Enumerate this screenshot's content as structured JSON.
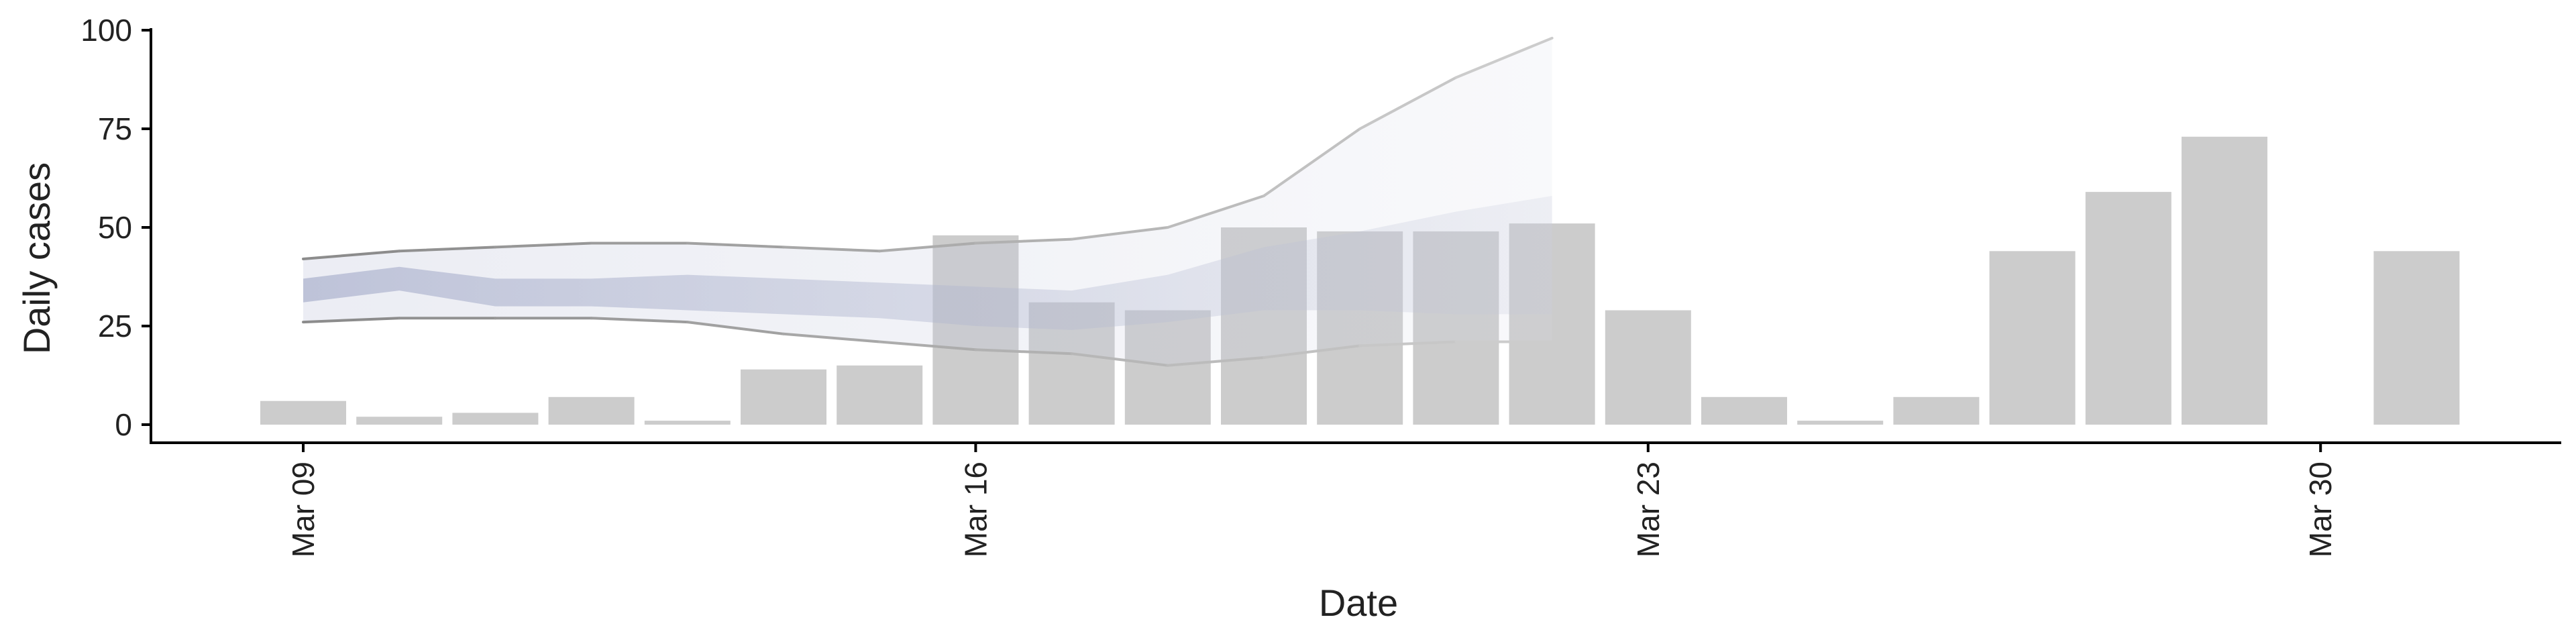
{
  "chart_data": {
    "type": "bar",
    "xlabel": "Date",
    "ylabel": "Daily cases",
    "ylim": [
      0,
      100
    ],
    "yticks": [
      0,
      25,
      50,
      75,
      100
    ],
    "ytick_labels": [
      "0",
      "25",
      "50",
      "75",
      "100"
    ],
    "xlim": [
      "2020-03-08",
      "2020-04-02"
    ],
    "xticks": [
      "2020-03-09",
      "2020-03-16",
      "2020-03-23",
      "2020-03-30"
    ],
    "xtick_labels": [
      "Mar 09",
      "Mar 16",
      "Mar 23",
      "Mar 30"
    ],
    "grid": false,
    "bars": {
      "color": "#cccccc",
      "x": [
        "2020-03-09",
        "2020-03-10",
        "2020-03-11",
        "2020-03-12",
        "2020-03-13",
        "2020-03-14",
        "2020-03-15",
        "2020-03-16",
        "2020-03-17",
        "2020-03-18",
        "2020-03-19",
        "2020-03-20",
        "2020-03-21",
        "2020-03-22",
        "2020-03-23",
        "2020-03-24",
        "2020-03-25",
        "2020-03-26",
        "2020-03-27",
        "2020-03-28",
        "2020-03-29",
        "2020-03-30",
        "2020-03-31"
      ],
      "values": [
        6,
        2,
        3,
        7,
        1,
        14,
        15,
        48,
        31,
        29,
        50,
        49,
        49,
        51,
        29,
        7,
        1,
        7,
        44,
        59,
        73,
        0,
        44
      ]
    },
    "estimate": {
      "color": "#a4abc8",
      "x": [
        "2020-03-09",
        "2020-03-10",
        "2020-03-11",
        "2020-03-12",
        "2020-03-13",
        "2020-03-14",
        "2020-03-15",
        "2020-03-16",
        "2020-03-17",
        "2020-03-18",
        "2020-03-19",
        "2020-03-20",
        "2020-03-21",
        "2020-03-22"
      ],
      "lower_90": [
        26,
        27,
        27,
        27,
        26,
        23,
        21,
        19,
        18,
        15,
        17,
        20,
        21,
        21
      ],
      "upper_90": [
        42,
        44,
        45,
        46,
        46,
        45,
        44,
        46,
        47,
        50,
        58,
        75,
        88,
        98
      ],
      "lower_50": [
        31,
        34,
        30,
        30,
        29,
        28,
        27,
        25,
        24,
        26,
        29,
        29,
        28,
        28
      ],
      "upper_50": [
        37,
        40,
        37,
        37,
        38,
        37,
        36,
        35,
        34,
        38,
        45,
        49,
        54,
        58
      ]
    }
  }
}
